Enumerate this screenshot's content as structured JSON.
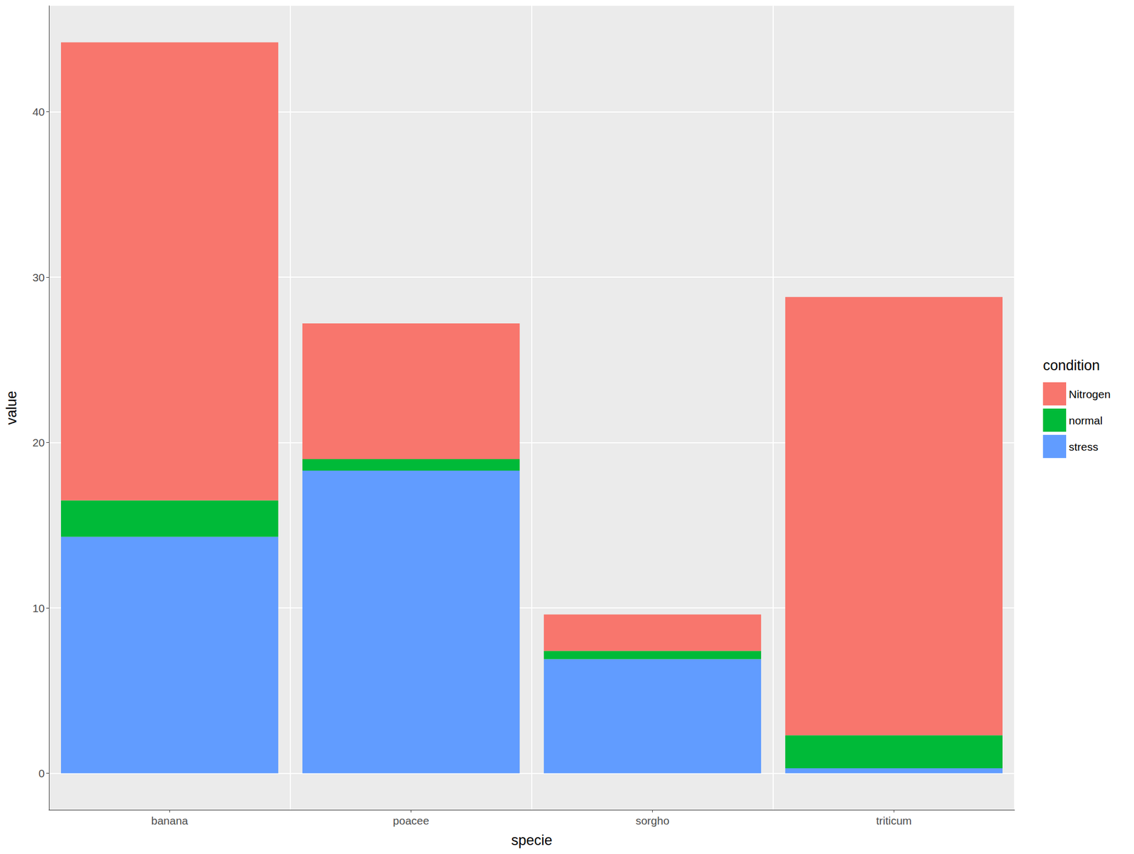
{
  "chart_data": {
    "type": "bar",
    "stacked": true,
    "x_label": "specie",
    "y_label": "value",
    "legend_title": "condition",
    "categories": [
      "banana",
      "poacee",
      "sorgho",
      "triticum"
    ],
    "series": [
      {
        "name": "Nitrogen",
        "color": "#F8766D",
        "values": [
          27.7,
          8.2,
          2.2,
          26.5
        ]
      },
      {
        "name": "normal",
        "color": "#00BA38",
        "values": [
          2.2,
          0.7,
          0.5,
          2.0
        ]
      },
      {
        "name": "stress",
        "color": "#619CFF",
        "values": [
          14.3,
          18.3,
          6.9,
          0.3
        ]
      }
    ],
    "ylim": [
      -2.21,
      46.41
    ],
    "yticks": [
      0,
      10,
      20,
      30,
      40
    ],
    "grid": true,
    "legend": "right"
  }
}
